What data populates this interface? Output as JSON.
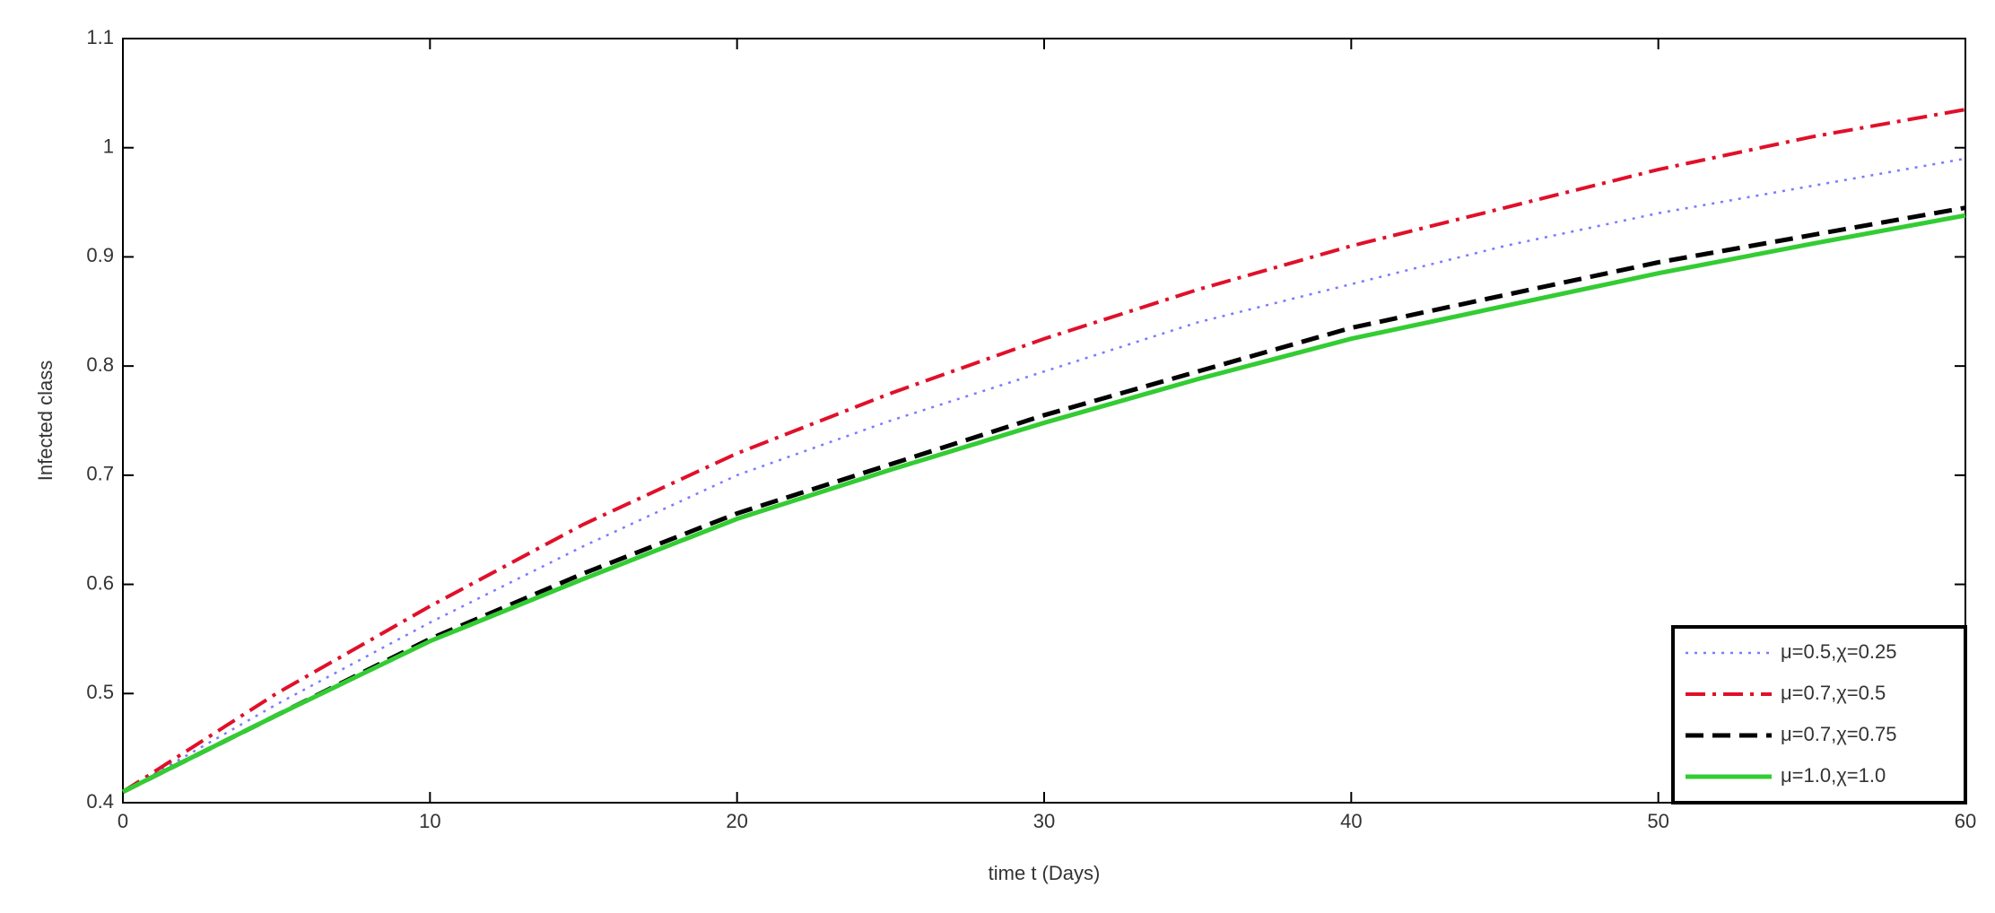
{
  "chart_data": {
    "type": "line",
    "x_label": "time t (Days)",
    "y_label": "Infected class",
    "x": [
      0,
      5,
      10,
      15,
      20,
      25,
      30,
      35,
      40,
      45,
      50,
      55,
      60
    ],
    "series": [
      {
        "name": "μ=0.5,χ=0.25",
        "color": "#7b7bff",
        "dash": "dotted",
        "values": [
          0.41,
          0.49,
          0.565,
          0.635,
          0.7,
          0.75,
          0.795,
          0.84,
          0.875,
          0.91,
          0.94,
          0.965,
          0.99
        ]
      },
      {
        "name": "μ=0.7,χ=0.5",
        "color": "#e0102a",
        "dash": "dashdot",
        "values": [
          0.41,
          0.5,
          0.58,
          0.655,
          0.72,
          0.775,
          0.825,
          0.87,
          0.91,
          0.945,
          0.98,
          1.01,
          1.035
        ]
      },
      {
        "name": "μ=0.7,χ=0.75",
        "color": "#000000",
        "dash": "dashed",
        "values": [
          0.41,
          0.48,
          0.55,
          0.61,
          0.665,
          0.71,
          0.755,
          0.795,
          0.835,
          0.865,
          0.895,
          0.92,
          0.945
        ]
      },
      {
        "name": "μ=1.0,χ=1.0",
        "color": "#33cc33",
        "dash": "solid",
        "values": [
          0.41,
          0.48,
          0.548,
          0.605,
          0.66,
          0.705,
          0.748,
          0.788,
          0.825,
          0.855,
          0.885,
          0.912,
          0.938
        ]
      }
    ],
    "xlim": [
      0,
      60
    ],
    "xticks": [
      0,
      10,
      20,
      30,
      40,
      50,
      60
    ],
    "ylim": [
      0.4,
      1.1
    ],
    "yticks": [
      0.4,
      0.5,
      0.6,
      0.7,
      0.8,
      0.9,
      1,
      1.1
    ],
    "legend": "lower right"
  }
}
